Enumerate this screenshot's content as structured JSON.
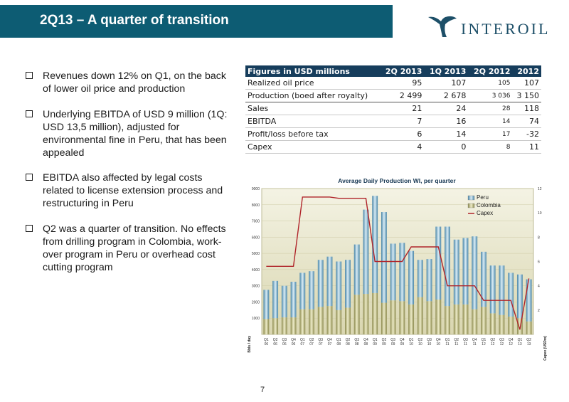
{
  "header": {
    "title": "2Q13 – A quarter of transition"
  },
  "logo": {
    "text": "INTEROIL"
  },
  "bullets": [
    "Revenues down 12% on Q1, on the back of lower oil price and production",
    "Underlying EBITDA of USD 9 million (1Q: USD 13,5 million), adjusted for environmental fine in Peru, that has been appealed",
    "EBITDA also affected by legal costs related to license extension process and restructuring in Peru",
    "Q2 was a quarter of transition. No effects from drilling program in Colombia, work-over program in Peru or overhead cost cutting program"
  ],
  "table": {
    "headers": [
      "Figures in USD millions",
      "2Q 2013",
      "1Q 2013",
      "2Q 2012",
      "2012"
    ],
    "rows": [
      [
        "Realized oil price",
        "95",
        "107",
        "105",
        "107"
      ],
      [
        "Production (boed after royalty)",
        "2 499",
        "2 678",
        "3 036",
        "3 150"
      ],
      [
        "Sales",
        "21",
        "24",
        "28",
        "118"
      ],
      [
        "EBITDA",
        "7",
        "16",
        "14",
        "74"
      ],
      [
        "Profit/loss before tax",
        "6",
        "14",
        "17",
        "-32"
      ],
      [
        "Capex",
        "4",
        "0",
        "8",
        "11"
      ]
    ]
  },
  "page_number": "7",
  "colors": {
    "title_bar": "#0d5c73",
    "table_header": "#163d5c",
    "peru": "#7eb3cf",
    "colombia": "#b7b57a",
    "capex": "#b0242a",
    "plot_bg": "#e4e2c6"
  },
  "chart_data": {
    "type": "bar",
    "title": "Average Daily Production WI, per quarter",
    "ylabel": "Bbls / day",
    "y2label": "Capex (USDm)",
    "ylim": [
      0,
      9000
    ],
    "y2lim": [
      0,
      12
    ],
    "yticks": [
      "1000",
      "2000",
      "3000",
      "4000",
      "5000",
      "6000",
      "7000",
      "8000",
      "9000"
    ],
    "y2ticks": [
      "2",
      "4",
      "6",
      "8",
      "10",
      "12"
    ],
    "categories": [
      [
        "Q1",
        "06"
      ],
      [
        "Q2",
        "06"
      ],
      [
        "Q3",
        "06"
      ],
      [
        "Q4",
        "06"
      ],
      [
        "Q1",
        "07"
      ],
      [
        "Q2",
        "07"
      ],
      [
        "Q3",
        "07"
      ],
      [
        "Q4",
        "07"
      ],
      [
        "Q1",
        "08"
      ],
      [
        "Q2",
        "08"
      ],
      [
        "Q3",
        "08"
      ],
      [
        "Q4",
        "08"
      ],
      [
        "Q1",
        "09"
      ],
      [
        "Q2",
        "09"
      ],
      [
        "Q3",
        "09"
      ],
      [
        "Q4",
        "09"
      ],
      [
        "Q1",
        "10"
      ],
      [
        "Q2",
        "10"
      ],
      [
        "Q3",
        "10"
      ],
      [
        "Q4",
        "10"
      ],
      [
        "Q1",
        "11"
      ],
      [
        "Q2",
        "11"
      ],
      [
        "Q3",
        "11"
      ],
      [
        "Q4",
        "11"
      ],
      [
        "Q1",
        "12"
      ],
      [
        "Q2",
        "12"
      ],
      [
        "Q3",
        "12"
      ],
      [
        "Q4",
        "12"
      ],
      [
        "Q1",
        "13"
      ],
      [
        "Q2",
        "13"
      ]
    ],
    "legend_position": "top-right",
    "stacked": true,
    "series": [
      {
        "name": "Peru",
        "kind": "bar",
        "axis": "left",
        "values": [
          1800,
          2300,
          1950,
          2200,
          2250,
          2350,
          2900,
          3050,
          3000,
          2950,
          3100,
          5200,
          6000,
          5600,
          3500,
          3600,
          3300,
          2300,
          2600,
          4500,
          4900,
          4000,
          4100,
          4500,
          3400,
          2950,
          3050,
          2700,
          2700,
          2600
        ]
      },
      {
        "name": "Colombia",
        "kind": "bar",
        "axis": "left",
        "values": [
          950,
          1000,
          1050,
          1050,
          1550,
          1550,
          1700,
          1750,
          1500,
          1650,
          2450,
          2500,
          2550,
          1950,
          2100,
          2050,
          1850,
          2300,
          2050,
          2150,
          1750,
          1850,
          1850,
          1550,
          1700,
          1300,
          1200,
          1100,
          1000,
          800
        ]
      },
      {
        "name": "Capex",
        "kind": "line",
        "axis": "right",
        "values": [
          5.6,
          5.6,
          5.6,
          5.6,
          11.3,
          11.3,
          11.3,
          11.3,
          11.2,
          11.2,
          11.2,
          11.2,
          6.0,
          6.0,
          6.0,
          6.0,
          7.2,
          7.2,
          7.2,
          7.2,
          4.0,
          4.0,
          4.0,
          4.0,
          2.8,
          2.8,
          2.8,
          2.8,
          0.4,
          4.6
        ]
      }
    ]
  }
}
